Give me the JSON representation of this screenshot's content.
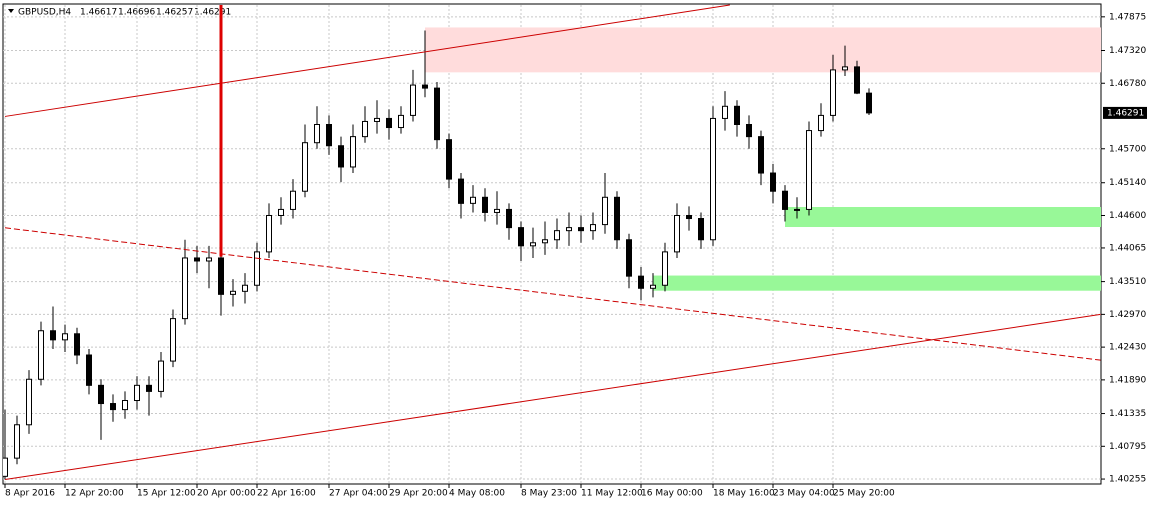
{
  "chart_data": {
    "type": "candlestick",
    "title": "GBPUSD,H4",
    "categories": [
      "8 Apr 2016",
      null,
      null,
      null,
      null,
      "12 Apr 20:00",
      null,
      null,
      null,
      null,
      null,
      "15 Apr 12:00",
      null,
      null,
      null,
      null,
      "20 Apr 00:00",
      null,
      null,
      null,
      null,
      "22 Apr 16:00",
      null,
      null,
      null,
      null,
      null,
      "27 Apr 04:00",
      null,
      null,
      null,
      null,
      "29 Apr 20:00",
      null,
      null,
      null,
      null,
      "4 May 08:00",
      null,
      null,
      null,
      null,
      null,
      "8 May 23:00",
      null,
      null,
      null,
      null,
      "11 May 12:00",
      null,
      null,
      null,
      null,
      "16 May 00:00",
      null,
      null,
      null,
      null,
      null,
      "18 May 16:00",
      null,
      null,
      null,
      null,
      "23 May 04:00",
      null,
      null,
      null,
      null,
      "25 May 20:00",
      null,
      null,
      null
    ],
    "open": [
      1.403,
      1.406,
      1.4115,
      1.419,
      1.427,
      1.4255,
      1.4265,
      1.423,
      1.418,
      1.415,
      1.414,
      1.4155,
      1.418,
      1.417,
      1.422,
      1.429,
      1.439,
      1.4385,
      1.439,
      1.433,
      1.4335,
      1.4345,
      1.44,
      1.446,
      1.447,
      1.45,
      1.458,
      1.461,
      1.4575,
      1.454,
      1.459,
      1.4615,
      1.462,
      1.4605,
      1.4625,
      1.4675,
      1.467,
      1.4585,
      1.452,
      1.448,
      1.449,
      1.4465,
      1.447,
      1.444,
      1.441,
      1.4415,
      1.442,
      1.4435,
      1.444,
      1.4435,
      1.4445,
      1.449,
      1.442,
      1.436,
      1.434,
      1.4345,
      1.44,
      1.446,
      1.4455,
      1.442,
      1.462,
      1.464,
      1.461,
      1.459,
      1.453,
      1.45,
      1.447,
      1.447,
      1.46,
      1.4625,
      1.47,
      1.4705,
      1.46617
    ],
    "high": [
      1.414,
      1.413,
      1.4205,
      1.4285,
      1.431,
      1.428,
      1.4275,
      1.424,
      1.419,
      1.4165,
      1.417,
      1.4195,
      1.4195,
      1.4235,
      1.4305,
      1.442,
      1.441,
      1.441,
      1.44,
      1.4355,
      1.4365,
      1.4415,
      1.448,
      1.449,
      1.452,
      1.461,
      1.464,
      1.4625,
      1.459,
      1.461,
      1.464,
      1.465,
      1.4635,
      1.464,
      1.47,
      1.4765,
      1.468,
      1.4595,
      1.453,
      1.451,
      1.4505,
      1.45,
      1.448,
      1.445,
      1.444,
      1.445,
      1.4455,
      1.4465,
      1.446,
      1.4465,
      1.453,
      1.45,
      1.443,
      1.4375,
      1.4365,
      1.4415,
      1.448,
      1.4475,
      1.4465,
      1.464,
      1.4665,
      1.465,
      1.4625,
      1.46,
      1.4545,
      1.451,
      1.449,
      1.4615,
      1.4645,
      1.4725,
      1.474,
      1.4715,
      1.46696
    ],
    "low": [
      1.4025,
      1.405,
      1.41,
      1.418,
      1.424,
      1.4235,
      1.4215,
      1.4165,
      1.409,
      1.412,
      1.4125,
      1.414,
      1.413,
      1.416,
      1.421,
      1.428,
      1.4365,
      1.434,
      1.4295,
      1.431,
      1.4315,
      1.4335,
      1.439,
      1.4445,
      1.4455,
      1.449,
      1.457,
      1.456,
      1.4515,
      1.453,
      1.458,
      1.4595,
      1.4585,
      1.4595,
      1.4615,
      1.4655,
      1.457,
      1.4505,
      1.4455,
      1.4465,
      1.445,
      1.4445,
      1.442,
      1.4385,
      1.439,
      1.4395,
      1.4405,
      1.441,
      1.4415,
      1.442,
      1.443,
      1.4405,
      1.434,
      1.432,
      1.4325,
      1.4335,
      1.439,
      1.4435,
      1.4405,
      1.441,
      1.46,
      1.459,
      1.457,
      1.451,
      1.448,
      1.445,
      1.4455,
      1.446,
      1.459,
      1.4615,
      1.469,
      1.466,
      1.46257
    ],
    "close": [
      1.406,
      1.4115,
      1.419,
      1.427,
      1.4255,
      1.4265,
      1.423,
      1.418,
      1.415,
      1.414,
      1.4155,
      1.418,
      1.417,
      1.422,
      1.429,
      1.439,
      1.4385,
      1.439,
      1.433,
      1.4335,
      1.4345,
      1.44,
      1.446,
      1.447,
      1.45,
      1.458,
      1.461,
      1.4575,
      1.454,
      1.459,
      1.4615,
      1.462,
      1.4605,
      1.4625,
      1.4675,
      1.467,
      1.4585,
      1.452,
      1.448,
      1.449,
      1.4465,
      1.447,
      1.444,
      1.441,
      1.4415,
      1.442,
      1.4435,
      1.444,
      1.4435,
      1.4445,
      1.449,
      1.442,
      1.436,
      1.434,
      1.4345,
      1.44,
      1.446,
      1.4455,
      1.442,
      1.462,
      1.464,
      1.461,
      1.459,
      1.453,
      1.45,
      1.447,
      1.447,
      1.46,
      1.4625,
      1.47,
      1.4705,
      1.46617,
      1.46291
    ],
    "ylim": [
      1.4019,
      1.4807
    ],
    "yticks": [
      {
        "value": 1.47875,
        "label": "1.47875"
      },
      {
        "value": 1.4732,
        "label": "1.47320"
      },
      {
        "value": 1.4678,
        "label": "1.46780"
      },
      {
        "value": 1.457,
        "label": "1.45700"
      },
      {
        "value": 1.4514,
        "label": "1.45140"
      },
      {
        "value": 1.446,
        "label": "1.44600"
      },
      {
        "value": 1.44065,
        "label": "1.44065"
      },
      {
        "value": 1.4351,
        "label": "1.43510"
      },
      {
        "value": 1.4297,
        "label": "1.42970"
      },
      {
        "value": 1.4243,
        "label": "1.42430"
      },
      {
        "value": 1.4189,
        "label": "1.41890"
      },
      {
        "value": 1.41335,
        "label": "1.41335"
      },
      {
        "value": 1.40795,
        "label": "1.40795"
      },
      {
        "value": 1.40255,
        "label": "1.40255"
      }
    ],
    "grid": true,
    "up_color": "#ffffff",
    "down_color": "#000000",
    "zones": [
      {
        "color": "#ffdcdc",
        "start": 35,
        "range": [
          1.4696,
          1.477
        ]
      },
      {
        "color": "#98f898",
        "start": 65,
        "range": [
          1.4441,
          1.4474
        ]
      },
      {
        "color": "#98f898",
        "start": 54,
        "range": [
          1.4336,
          1.4361
        ]
      }
    ],
    "lines": [
      {
        "color": "#cc0000",
        "style": "solid",
        "x": [
          0,
          60.4
        ],
        "y": [
          1.46233,
          1.4807
        ]
      },
      {
        "color": "#cc0000",
        "style": "dashed",
        "x": [
          0,
          91.3
        ],
        "y": [
          1.44397,
          1.42215
        ]
      },
      {
        "color": "#cc0000",
        "style": "solid",
        "x": [
          0,
          91.3
        ],
        "y": [
          1.40247,
          1.4297
        ]
      },
      {
        "color": "#dd0000",
        "style": "thick",
        "x": [
          18,
          18
        ],
        "y": [
          1.4807,
          1.43921
        ]
      }
    ]
  }
}
